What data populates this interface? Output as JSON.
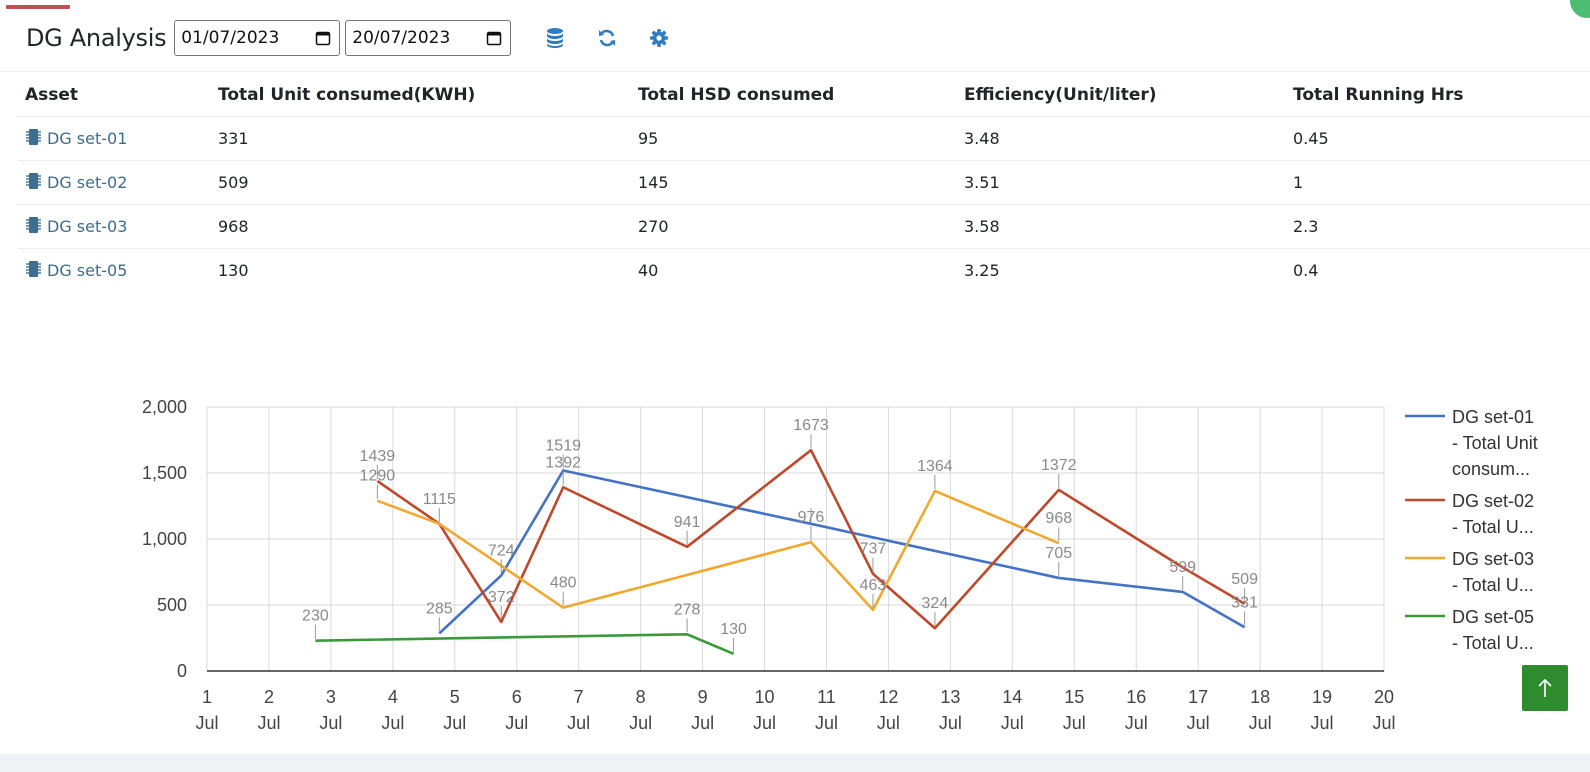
{
  "header": {
    "title": "DG Analysis",
    "start_date": "01/07/2023",
    "end_date": "20/07/2023",
    "icons": [
      "calendar-icon",
      "database-icon",
      "refresh-icon",
      "gear-icon"
    ]
  },
  "table": {
    "columns": [
      "Asset",
      "Total Unit consumed(KWH)",
      "Total HSD consumed",
      "Efficiency(Unit/liter)",
      "Total Running Hrs"
    ],
    "rows": [
      {
        "asset": "DG set-01",
        "units": "331",
        "hsd": "95",
        "efficiency": "3.48",
        "hrs": "0.45"
      },
      {
        "asset": "DG set-02",
        "units": "509",
        "hsd": "145",
        "efficiency": "3.51",
        "hrs": "1"
      },
      {
        "asset": "DG set-03",
        "units": "968",
        "hsd": "270",
        "efficiency": "3.58",
        "hrs": "2.3"
      },
      {
        "asset": "DG set-05",
        "units": "130",
        "hsd": "40",
        "efficiency": "3.25",
        "hrs": "0.4"
      }
    ]
  },
  "chart_data": {
    "type": "line",
    "title": "",
    "xlabel": "",
    "ylabel": "",
    "xlim": [
      1,
      20
    ],
    "ylim": [
      0,
      2000
    ],
    "x_ticks": [
      [
        "1",
        "Jul"
      ],
      [
        "2",
        "Jul"
      ],
      [
        "3",
        "Jul"
      ],
      [
        "4",
        "Jul"
      ],
      [
        "5",
        "Jul"
      ],
      [
        "6",
        "Jul"
      ],
      [
        "7",
        "Jul"
      ],
      [
        "8",
        "Jul"
      ],
      [
        "9",
        "Jul"
      ],
      [
        "10",
        "Jul"
      ],
      [
        "11",
        "Jul"
      ],
      [
        "12",
        "Jul"
      ],
      [
        "13",
        "Jul"
      ],
      [
        "14",
        "Jul"
      ],
      [
        "15",
        "Jul"
      ],
      [
        "16",
        "Jul"
      ],
      [
        "17",
        "Jul"
      ],
      [
        "18",
        "Jul"
      ],
      [
        "19",
        "Jul"
      ],
      [
        "20",
        "Jul"
      ]
    ],
    "y_ticks": [
      {
        "value": 0,
        "label": "0"
      },
      {
        "value": 500,
        "label": "500"
      },
      {
        "value": 1000,
        "label": "1,000"
      },
      {
        "value": 1500,
        "label": "1,500"
      },
      {
        "value": 2000,
        "label": "2,000"
      }
    ],
    "grid": true,
    "legend_position": "right",
    "series": [
      {
        "name": "DG set-01 - Total Unit consum...",
        "legend_lines": [
          "DG set-01",
          "- Total Unit",
          "consum..."
        ],
        "color": "#4472c4",
        "points": [
          [
            4.75,
            285
          ],
          [
            5.75,
            724
          ],
          [
            6.75,
            1519
          ],
          [
            10.75,
            1115
          ],
          [
            14.75,
            705
          ],
          [
            16.75,
            599
          ],
          [
            17.75,
            331
          ]
        ],
        "labels": [
          [
            4.75,
            285,
            "285"
          ],
          [
            5.75,
            724,
            "724"
          ],
          [
            6.75,
            1519,
            "1519"
          ],
          [
            10.75,
            1115,
            ""
          ],
          [
            14.75,
            705,
            "705"
          ],
          [
            16.75,
            599,
            "599"
          ],
          [
            17.75,
            331,
            "331"
          ]
        ]
      },
      {
        "name": "DG set-02 - Total U...",
        "legend_lines": [
          "DG set-02",
          "- Total U..."
        ],
        "color": "#c0482a",
        "points": [
          [
            3.75,
            1439
          ],
          [
            4.75,
            1115
          ],
          [
            5.75,
            372
          ],
          [
            6.75,
            1392
          ],
          [
            8.75,
            941
          ],
          [
            10.75,
            1673
          ],
          [
            11.75,
            737
          ],
          [
            12.75,
            324
          ],
          [
            14.75,
            1372
          ],
          [
            16.75,
            785
          ],
          [
            17.75,
            509
          ]
        ],
        "labels": [
          [
            3.75,
            1439,
            "1439"
          ],
          [
            4.75,
            1115,
            "1115"
          ],
          [
            5.75,
            372,
            "372"
          ],
          [
            6.75,
            1392,
            "1392"
          ],
          [
            8.75,
            941,
            "941"
          ],
          [
            10.75,
            1673,
            "1673"
          ],
          [
            11.75,
            737,
            "737"
          ],
          [
            12.75,
            324,
            "324"
          ],
          [
            14.75,
            1372,
            "1372"
          ],
          [
            17.75,
            509,
            "509"
          ]
        ]
      },
      {
        "name": "DG set-03 - Total U...",
        "legend_lines": [
          "DG set-03",
          "- Total U..."
        ],
        "color": "#f0a830",
        "points": [
          [
            3.75,
            1290
          ],
          [
            4.75,
            1115
          ],
          [
            6.75,
            480
          ],
          [
            10.75,
            976
          ],
          [
            11.75,
            463
          ],
          [
            12.75,
            1364
          ],
          [
            14.75,
            968
          ]
        ],
        "labels": [
          [
            3.75,
            1290,
            "1290"
          ],
          [
            6.75,
            480,
            "480"
          ],
          [
            10.75,
            976,
            "976"
          ],
          [
            11.75,
            463,
            "463"
          ],
          [
            12.75,
            1364,
            "1364"
          ],
          [
            14.75,
            968,
            "968"
          ]
        ]
      },
      {
        "name": "DG set-05 - Total U...",
        "legend_lines": [
          "DG set-05",
          "- Total U..."
        ],
        "color": "#3a9a3a",
        "points": [
          [
            2.75,
            230
          ],
          [
            8.75,
            278
          ],
          [
            9.5,
            130
          ]
        ],
        "labels": [
          [
            2.75,
            230,
            "230"
          ],
          [
            8.75,
            278,
            "278"
          ],
          [
            9.5,
            130,
            "130"
          ]
        ]
      }
    ]
  }
}
